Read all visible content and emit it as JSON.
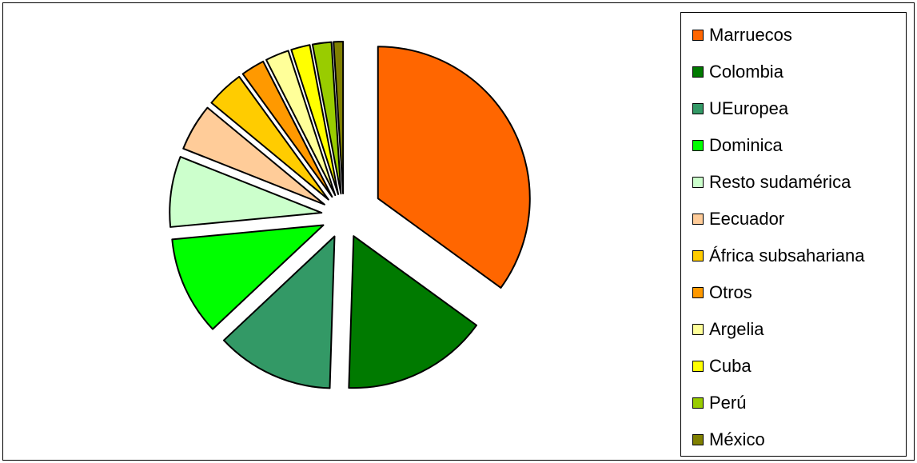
{
  "chart_data": {
    "type": "pie",
    "exploded": true,
    "legend_position": "right",
    "slices": [
      {
        "label": "Marruecos",
        "value": 35.0,
        "color": "#FF6600"
      },
      {
        "label": "Colombia",
        "value": 15.5,
        "color": "#007A00"
      },
      {
        "label": "UEuropea",
        "value": 12.5,
        "color": "#339966"
      },
      {
        "label": "Dominica",
        "value": 10.5,
        "color": "#00FF00"
      },
      {
        "label": "Resto sudamérica",
        "value": 7.5,
        "color": "#CCFFCC"
      },
      {
        "label": "Eecuador",
        "value": 5.0,
        "color": "#FFCC99"
      },
      {
        "label": "África subsahariana",
        "value": 4.0,
        "color": "#FFCC00"
      },
      {
        "label": "Otros",
        "value": 2.5,
        "color": "#FF9900"
      },
      {
        "label": "Argelia",
        "value": 2.5,
        "color": "#FFFF99"
      },
      {
        "label": "Cuba",
        "value": 2.0,
        "color": "#FFFF00"
      },
      {
        "label": "Perú",
        "value": 2.0,
        "color": "#99CC00"
      },
      {
        "label": "México",
        "value": 1.0,
        "color": "#808000"
      }
    ]
  }
}
